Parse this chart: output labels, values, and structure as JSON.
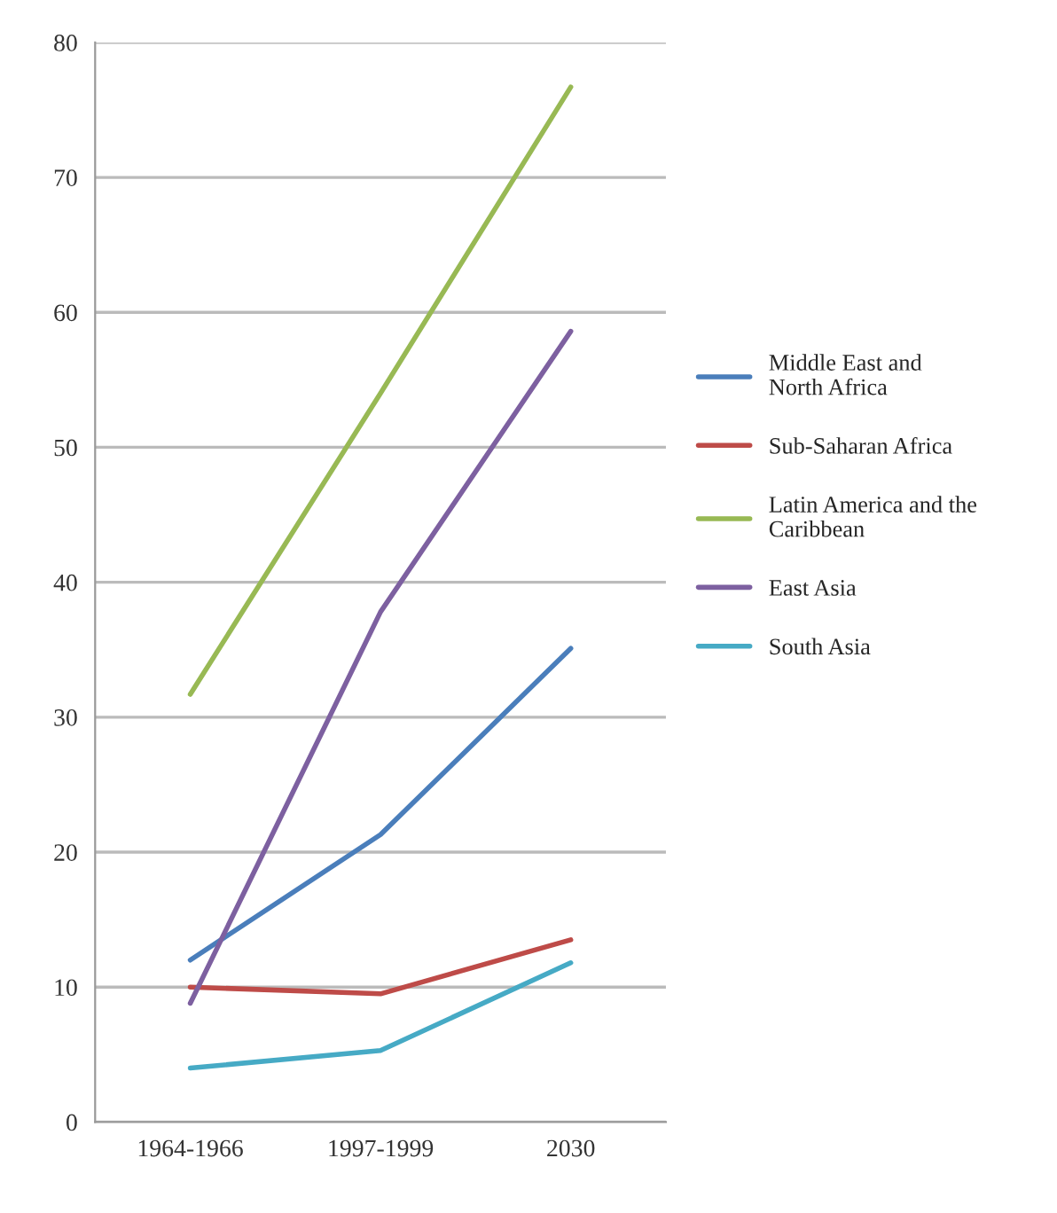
{
  "chart_data": {
    "type": "line",
    "categories": [
      "1964-1966",
      "1997-1999",
      "2030"
    ],
    "series": [
      {
        "name": "Middle East and\nNorth Africa",
        "color": "#4a7ebb",
        "values": [
          12,
          21.3,
          35.1
        ]
      },
      {
        "name": "Sub-Saharan Africa",
        "color": "#be4b48",
        "values": [
          10,
          9.5,
          13.5
        ]
      },
      {
        "name": "Latin America and the\nCaribbean",
        "color": "#98b954",
        "values": [
          31.7,
          54,
          76.7
        ]
      },
      {
        "name": "East Asia",
        "color": "#7d60a0",
        "values": [
          8.8,
          37.8,
          58.6
        ]
      },
      {
        "name": "South Asia",
        "color": "#46aac5",
        "values": [
          4,
          5.3,
          11.8
        ]
      }
    ],
    "ylim": [
      0,
      80
    ],
    "yticks": [
      0,
      10,
      20,
      30,
      40,
      50,
      60,
      70,
      80
    ],
    "grid": "y",
    "legend": "right",
    "marker": "none",
    "line_style": "solid"
  }
}
